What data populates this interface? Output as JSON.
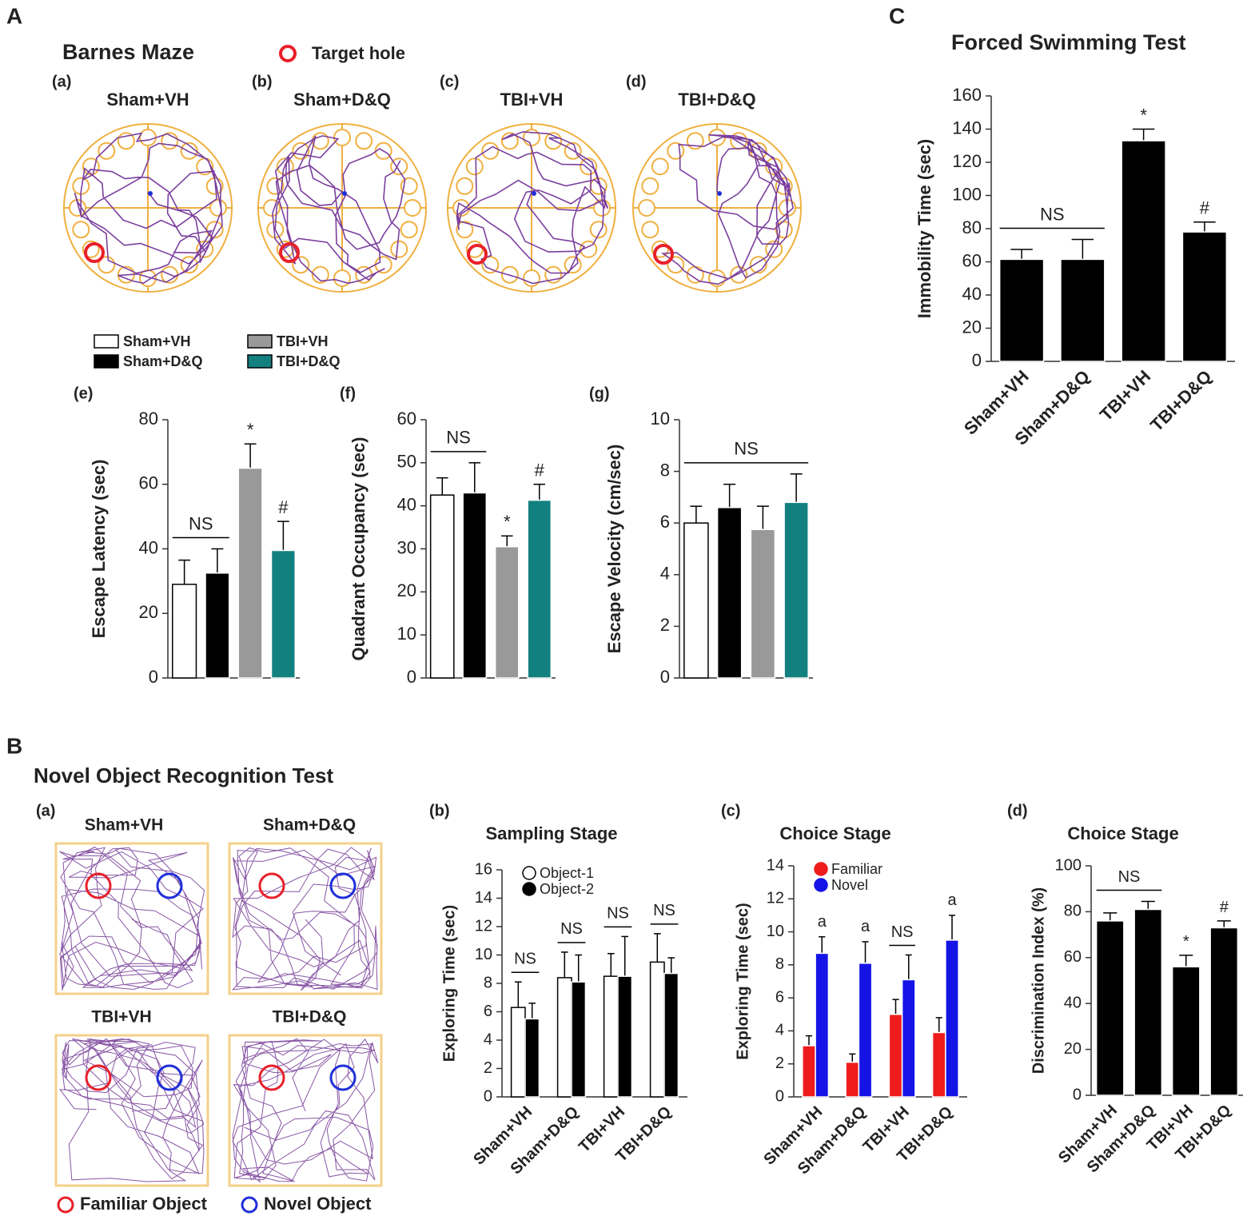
{
  "figure": {
    "A": {
      "label": "A",
      "title": "Barnes Maze",
      "key": "Target hole",
      "mazes": [
        {
          "panel": "(a)",
          "name": "Sham+VH"
        },
        {
          "panel": "(b)",
          "name": "Sham+D&Q"
        },
        {
          "panel": "(c)",
          "name": "TBI+VH"
        },
        {
          "panel": "(d)",
          "name": "TBI+D&Q"
        }
      ]
    },
    "legend": [
      {
        "name": "Sham+VH",
        "color": "#ffffff"
      },
      {
        "name": "Sham+D&Q",
        "color": "#000000"
      },
      {
        "name": "TBI+VH",
        "color": "#999999"
      },
      {
        "name": "TBI+D&Q",
        "color": "#138080"
      }
    ],
    "B": {
      "label": "B",
      "title": "Novel Object Recognition Test",
      "panel": "(a)",
      "arenas": [
        "Sham+VH",
        "Sham+D&Q",
        "TBI+VH",
        "TBI+D&Q"
      ],
      "key": [
        {
          "name": "Familiar Object",
          "color": "#e8202a"
        },
        {
          "name": "Novel Object",
          "color": "#1f2fd8"
        }
      ]
    },
    "C": {
      "label": "C"
    }
  },
  "chart_data": [
    {
      "type": "bar",
      "panel": "(e)",
      "ylabel": "Escape Latency (sec)",
      "ylim": [
        0,
        80
      ],
      "yticks": [
        0,
        20,
        40,
        60,
        80
      ],
      "values": [
        29,
        32.5,
        65,
        39.5
      ],
      "errors": [
        7.5,
        7.5,
        7.5,
        9
      ],
      "colors": [
        "#ffffff",
        "#000000",
        "#999999",
        "#138080"
      ],
      "annotations": [
        {
          "text": "NS",
          "bars": [
            0,
            1
          ]
        },
        {
          "text": "*",
          "bars": [
            2
          ]
        },
        {
          "text": "#",
          "bars": [
            3
          ]
        }
      ]
    },
    {
      "type": "bar",
      "panel": "(f)",
      "ylabel": "Quadrant Occupancy (sec)",
      "ylim": [
        0,
        60
      ],
      "yticks": [
        0,
        10,
        20,
        30,
        40,
        50,
        60
      ],
      "values": [
        42.5,
        43,
        30.5,
        41.3
      ],
      "errors": [
        4,
        7,
        2.5,
        3.7
      ],
      "colors": [
        "#ffffff",
        "#000000",
        "#999999",
        "#138080"
      ],
      "annotations": [
        {
          "text": "NS",
          "bars": [
            0,
            1
          ]
        },
        {
          "text": "*",
          "bars": [
            2
          ]
        },
        {
          "text": "#",
          "bars": [
            3
          ]
        }
      ]
    },
    {
      "type": "bar",
      "panel": "(g)",
      "ylabel": "Escape Velocity (cm/sec)",
      "ylim": [
        0,
        10
      ],
      "yticks": [
        0,
        2,
        4,
        6,
        8,
        10
      ],
      "values": [
        6,
        6.6,
        5.75,
        6.8
      ],
      "errors": [
        0.65,
        0.9,
        0.9,
        1.1
      ],
      "colors": [
        "#ffffff",
        "#000000",
        "#999999",
        "#138080"
      ],
      "annotations": [
        {
          "text": "NS",
          "bars": [
            0,
            1,
            2,
            3
          ]
        }
      ]
    },
    {
      "type": "bar",
      "title": "Forced Swimming Test",
      "ylabel": "Immobility Time (sec)",
      "ylim": [
        0,
        160
      ],
      "yticks": [
        0,
        20,
        40,
        60,
        80,
        100,
        120,
        140,
        160
      ],
      "categories": [
        "Sham+VH",
        "Sham+D&Q",
        "TBI+VH",
        "TBI+D&Q"
      ],
      "values": [
        61.5,
        61.5,
        133,
        78
      ],
      "errors": [
        6,
        12,
        7,
        6
      ],
      "colors": [
        "#000000",
        "#000000",
        "#000000",
        "#000000"
      ],
      "annotations": [
        {
          "text": "NS",
          "bars": [
            0,
            1
          ]
        },
        {
          "text": "*",
          "bars": [
            2
          ]
        },
        {
          "text": "#",
          "bars": [
            3
          ]
        }
      ]
    },
    {
      "type": "grouped_bar",
      "panel": "(b)",
      "title": "Sampling Stage",
      "ylabel": "Exploring Time (sec)",
      "ylim": [
        0,
        16
      ],
      "yticks": [
        0,
        2,
        4,
        6,
        8,
        10,
        12,
        14,
        16
      ],
      "categories": [
        "Sham+VH",
        "Sham+D&Q",
        "TBI+VH",
        "TBI+D&Q"
      ],
      "legend": "upper left",
      "series": [
        {
          "name": "Object-1",
          "color": "#ffffff",
          "values": [
            6.3,
            8.4,
            8.5,
            9.5
          ],
          "errors": [
            1.8,
            1.8,
            1.6,
            2
          ]
        },
        {
          "name": "Object-2",
          "color": "#000000",
          "values": [
            5.5,
            8.1,
            8.5,
            8.7
          ],
          "errors": [
            1.1,
            1.9,
            2.8,
            1.1
          ]
        }
      ],
      "annotations": [
        {
          "text": "NS",
          "category": 0,
          "bracket": true
        },
        {
          "text": "NS",
          "category": 1,
          "bracket": true
        },
        {
          "text": "NS",
          "category": 2,
          "bracket": true
        },
        {
          "text": "NS",
          "category": 3,
          "bracket": true
        }
      ]
    },
    {
      "type": "grouped_bar",
      "panel": "(c)",
      "title": "Choice Stage",
      "ylabel": "Exploring Time (sec)",
      "ylim": [
        0,
        14
      ],
      "yticks": [
        0,
        2,
        4,
        6,
        8,
        10,
        12,
        14
      ],
      "categories": [
        "Sham+VH",
        "Sham+D&Q",
        "TBI+VH",
        "TBI+D&Q"
      ],
      "legend": "upper left",
      "series": [
        {
          "name": "Familiar",
          "color": "#ee1c1c",
          "values": [
            3.1,
            2.1,
            5,
            3.9
          ],
          "errors": [
            0.6,
            0.5,
            0.9,
            0.9
          ]
        },
        {
          "name": "Novel",
          "color": "#1414e6",
          "values": [
            8.7,
            8.1,
            7.1,
            9.5
          ],
          "errors": [
            1,
            1.3,
            1.5,
            1.5
          ]
        }
      ],
      "annotations": [
        {
          "text": "a",
          "category": 0,
          "bracket": false
        },
        {
          "text": "a",
          "category": 1,
          "bracket": false
        },
        {
          "text": "NS",
          "category": 2,
          "bracket": true
        },
        {
          "text": "a",
          "category": 3,
          "bracket": false
        }
      ]
    },
    {
      "type": "bar",
      "panel": "(d)",
      "title": "Choice Stage",
      "ylabel": "Discrimination Index (%)",
      "ylim": [
        0,
        100
      ],
      "yticks": [
        0,
        20,
        40,
        60,
        80,
        100
      ],
      "categories": [
        "Sham+VH",
        "Sham+D&Q",
        "TBI+VH",
        "TBI+D&Q"
      ],
      "values": [
        76,
        81,
        56,
        73
      ],
      "errors": [
        3.5,
        3.5,
        5,
        3
      ],
      "colors": [
        "#000000",
        "#000000",
        "#000000",
        "#000000"
      ],
      "annotations": [
        {
          "text": "NS",
          "bars": [
            0,
            1
          ]
        },
        {
          "text": "*",
          "bars": [
            2
          ]
        },
        {
          "text": "#",
          "bars": [
            3
          ]
        }
      ]
    }
  ]
}
